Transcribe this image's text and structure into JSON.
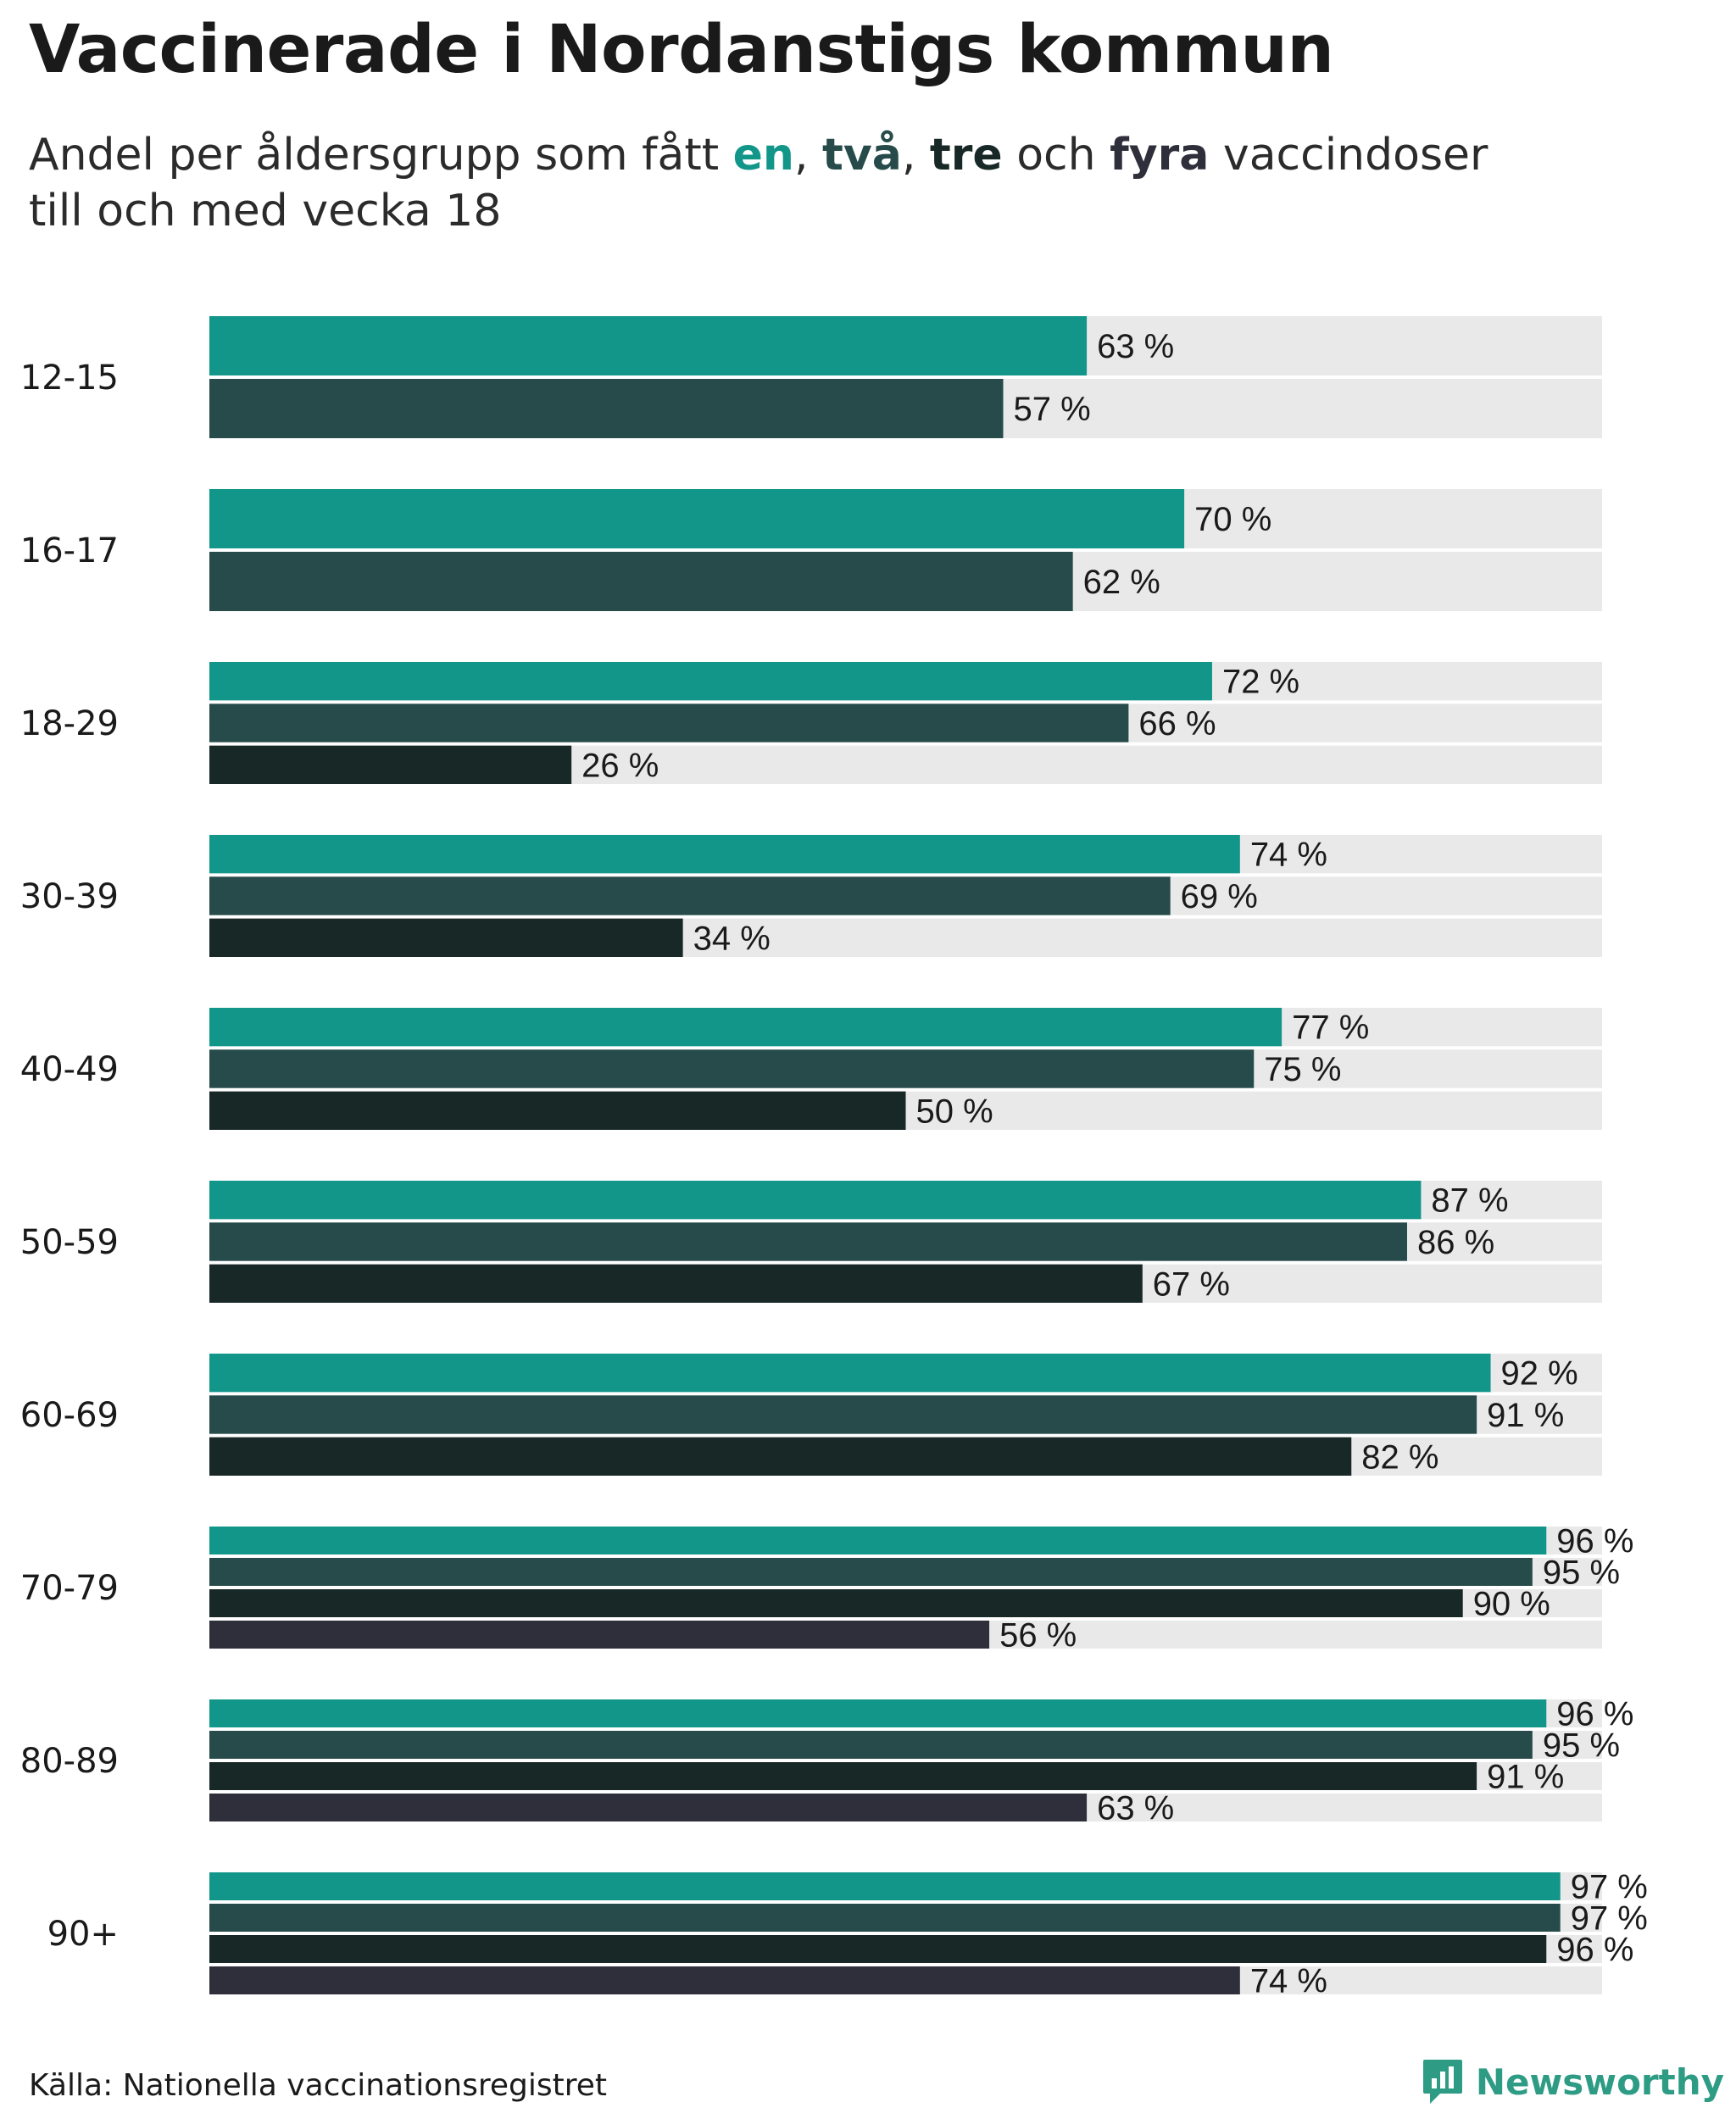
{
  "title": "Vaccinerade i Nordanstigs kommun",
  "subtitle": {
    "part1": "Andel per åldersgrupp som fått ",
    "k1": "en",
    "sep1": ", ",
    "k2": "två",
    "sep2": ", ",
    "k3": "tre",
    "part2": " och ",
    "k4": "fyra",
    "part3": " vaccindoser",
    "line2": "till och med vecka 18"
  },
  "colors": {
    "en": "#12968a",
    "tva": "#264b4a",
    "tre": "#182826",
    "fyra": "#2f2e3b",
    "track": "#e9e9e9"
  },
  "chart_data": {
    "type": "bar",
    "orientation": "horizontal",
    "title": "Vaccinerade i Nordanstigs kommun",
    "xlim": [
      0,
      100
    ],
    "value_suffix": " %",
    "categories": [
      "12-15",
      "16-17",
      "18-29",
      "30-39",
      "40-49",
      "50-59",
      "60-69",
      "70-79",
      "80-89",
      "90+"
    ],
    "series": [
      {
        "name": "en",
        "values": [
          63,
          70,
          72,
          74,
          77,
          87,
          92,
          96,
          96,
          97
        ]
      },
      {
        "name": "två",
        "values": [
          57,
          62,
          66,
          69,
          75,
          86,
          91,
          95,
          95,
          97
        ]
      },
      {
        "name": "tre",
        "values": [
          null,
          null,
          26,
          34,
          50,
          67,
          82,
          90,
          91,
          96
        ]
      },
      {
        "name": "fyra",
        "values": [
          null,
          null,
          null,
          null,
          null,
          null,
          null,
          56,
          63,
          74
        ]
      }
    ]
  },
  "source": "Källa: Nationella vaccinationsregistret",
  "brand": "Newsworthy"
}
